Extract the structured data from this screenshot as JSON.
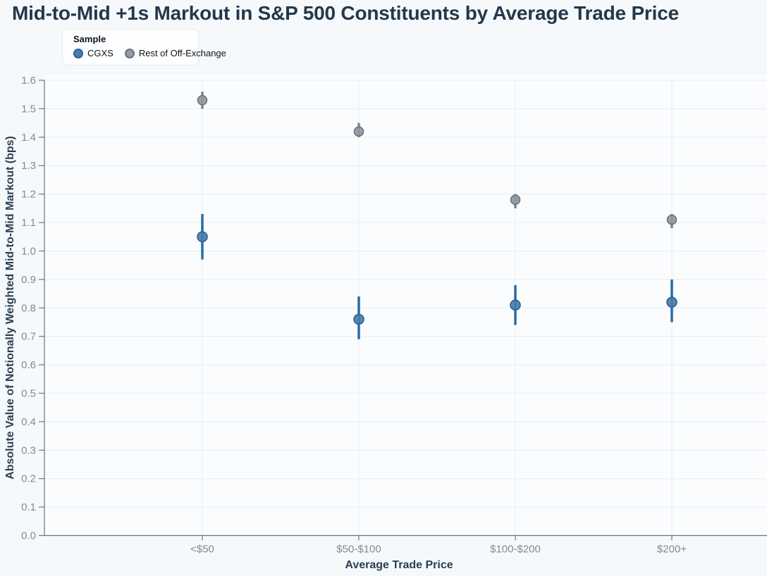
{
  "title": "Mid-to-Mid +1s Markout in S&P 500 Constituents by Average Trade Price",
  "legend": {
    "title": "Sample",
    "items": [
      {
        "label": "CGXS",
        "color": "#4a7dad",
        "border": "#2d6194"
      },
      {
        "label": "Rest of Off-Exchange",
        "color": "#929ca4",
        "border": "#6a747d"
      }
    ]
  },
  "chart_data": {
    "type": "scatter",
    "title": "Mid-to-Mid +1s Markout in S&P 500 Constituents by Average Trade Price",
    "xlabel": "Average Trade Price",
    "ylabel": "Absolute Value of Notionally Weighted Mid-to-Mid Markout (bps)",
    "categories": [
      "<$50",
      "$50-$100",
      "$100-$200",
      "$200+"
    ],
    "series": [
      {
        "name": "CGXS",
        "color": "#4a7dad",
        "edge": "#2d6194",
        "line": "#2b6ba6",
        "values": [
          1.05,
          0.76,
          0.81,
          0.82
        ],
        "ci_low": [
          0.97,
          0.69,
          0.74,
          0.75
        ],
        "ci_high": [
          1.13,
          0.84,
          0.88,
          0.9
        ]
      },
      {
        "name": "Rest of Off-Exchange",
        "color": "#8f99a1",
        "edge": "#6a747d",
        "line": "#7b858e",
        "values": [
          1.53,
          1.42,
          1.18,
          1.11
        ],
        "ci_low": [
          1.5,
          1.4,
          1.15,
          1.08
        ],
        "ci_high": [
          1.56,
          1.45,
          1.2,
          1.13
        ]
      }
    ],
    "ylim": [
      0.0,
      1.6
    ],
    "y_tick_labels": [
      "0.0",
      "0.1",
      "0.2",
      "0.3",
      "0.4",
      "0.5",
      "0.6",
      "0.7",
      "0.8",
      "0.9",
      "1.0",
      "1.1",
      "1.2",
      "1.3",
      "1.4",
      "1.5",
      "1.6"
    ],
    "grid": true,
    "legend_position": "top-left"
  },
  "colors": {
    "background": "#f6f9fb",
    "panel": "#fafcfe",
    "axis": "#6b7680",
    "grid": "#e8edf1",
    "tick_label": "#7f8b94",
    "title_text": "#24384b"
  }
}
